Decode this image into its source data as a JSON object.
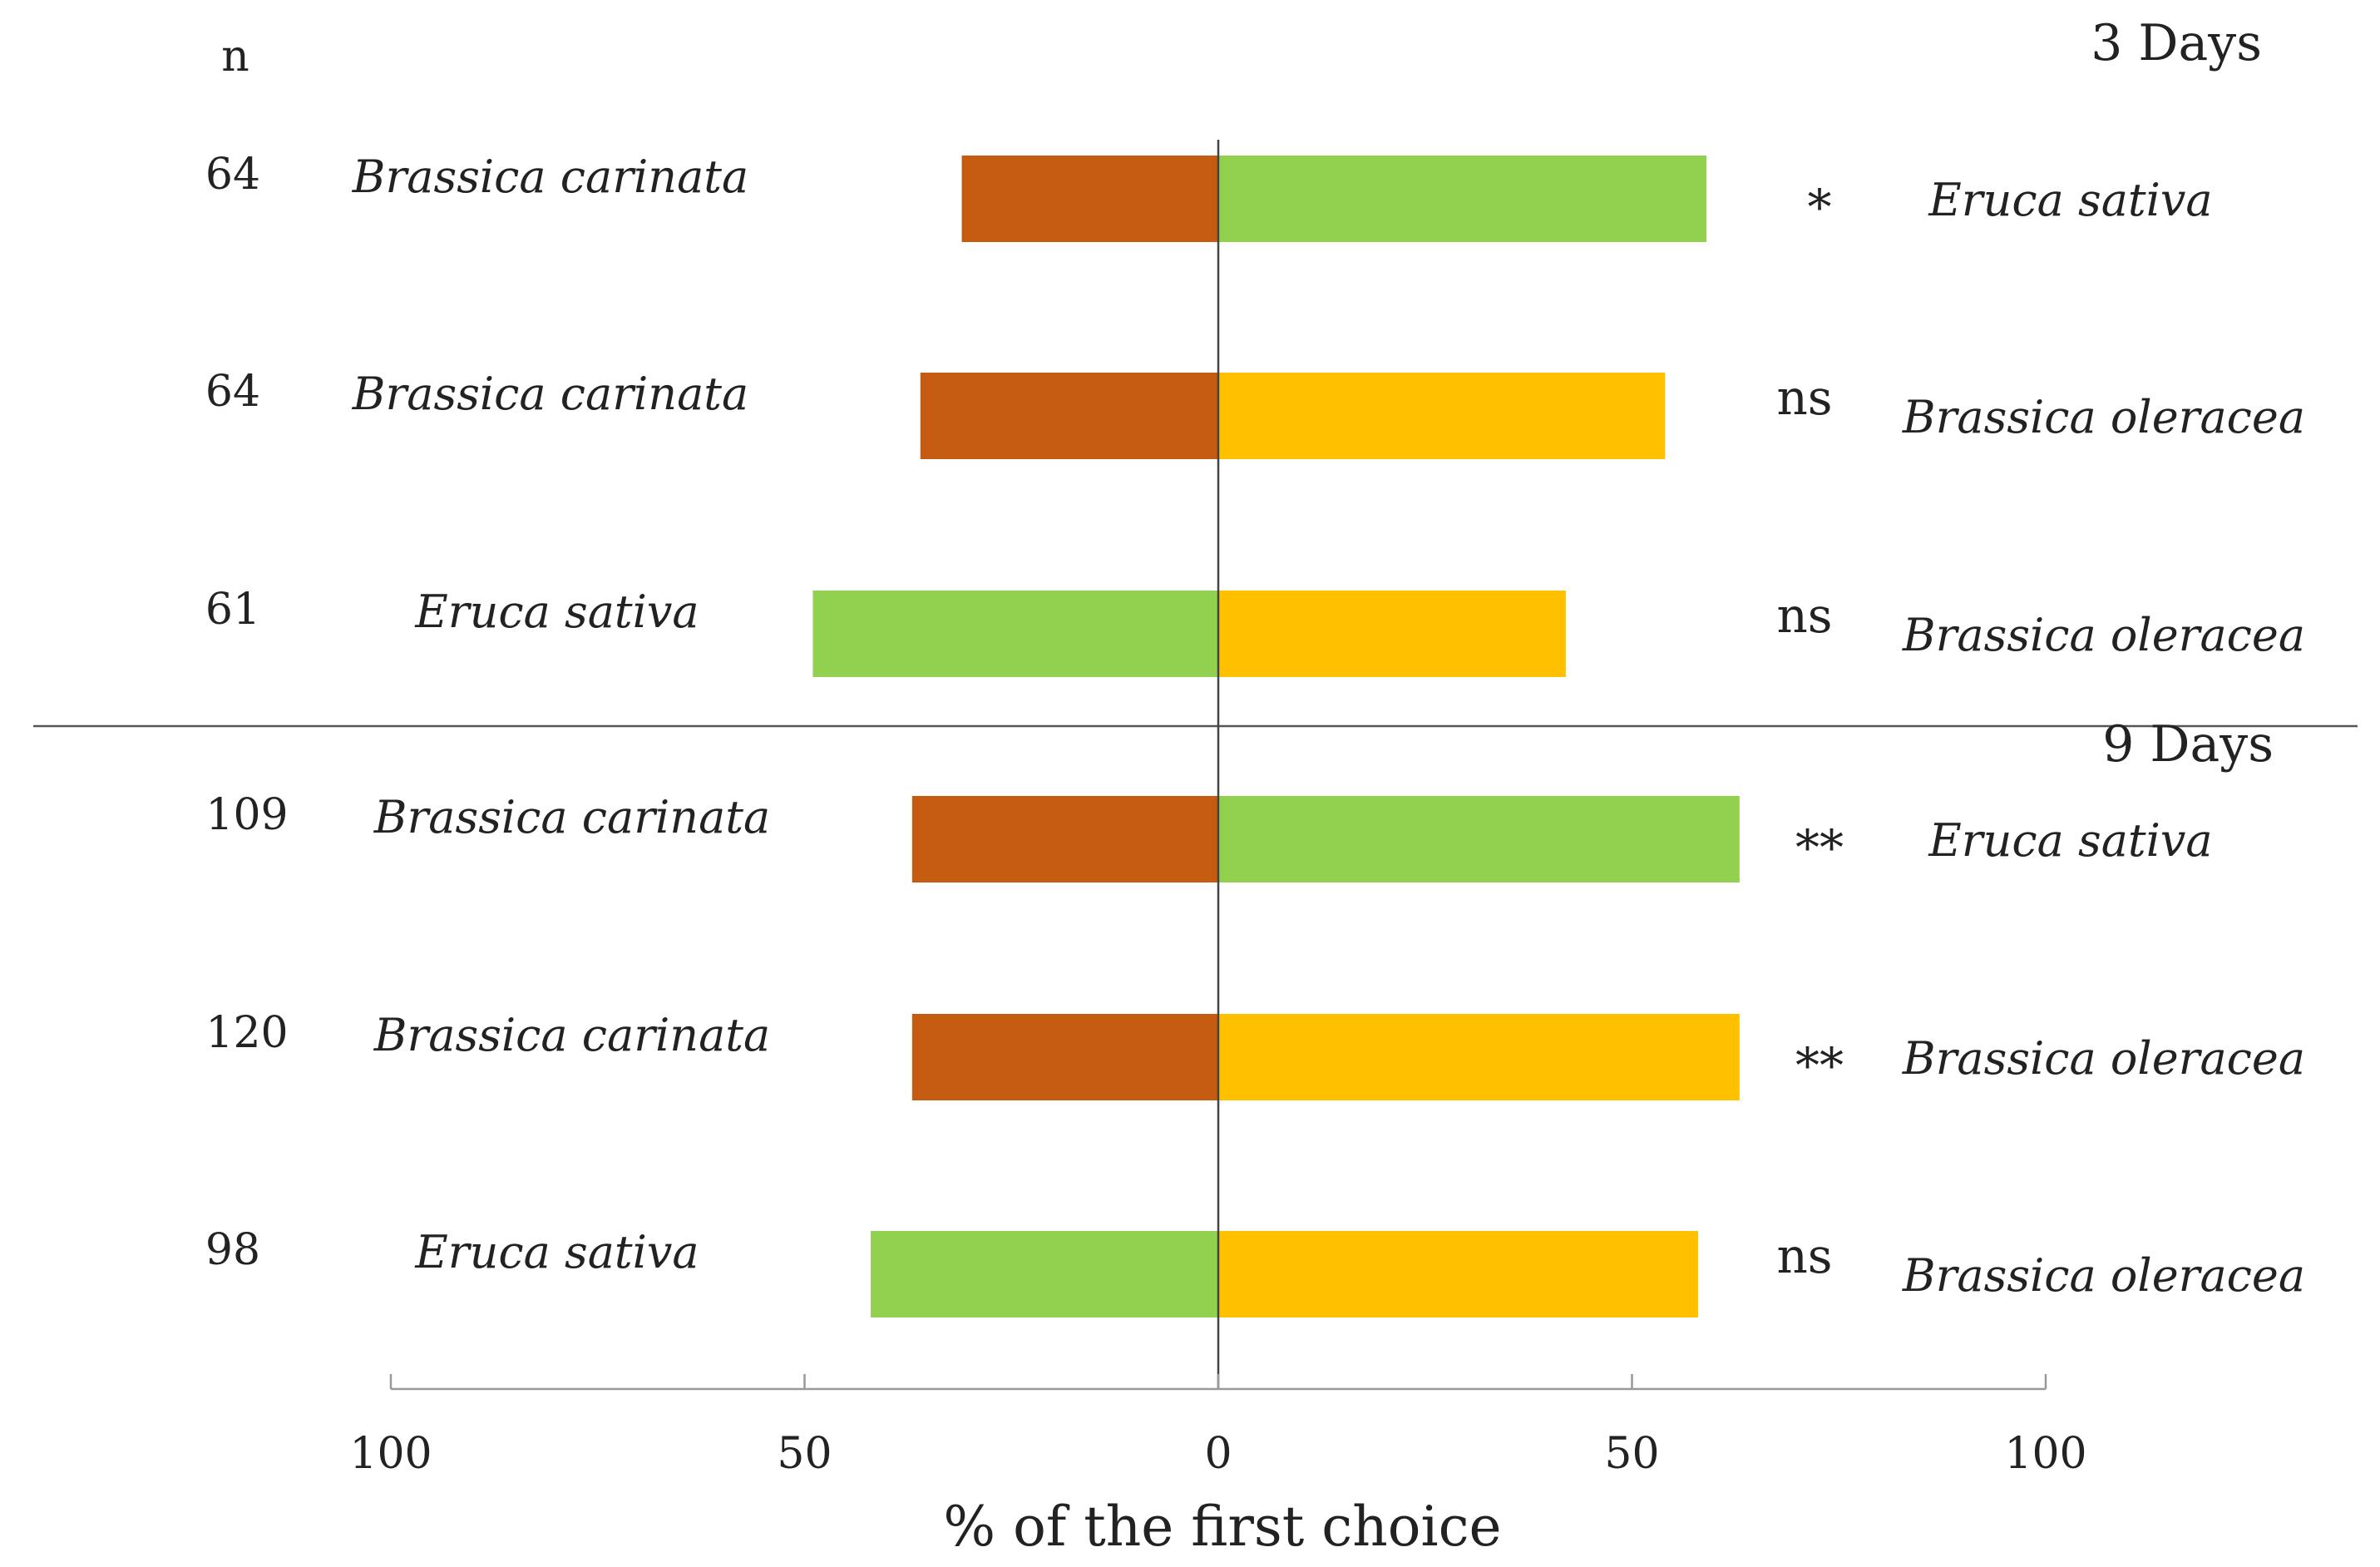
{
  "chart_data": {
    "type": "bar",
    "orientation": "horizontal-diverging",
    "xlabel": "% of the first choice",
    "xlim": [
      -100,
      100
    ],
    "xticks": [
      -100,
      -50,
      0,
      50,
      100
    ],
    "xtick_labels": [
      "100",
      "50",
      "0",
      "50",
      "100"
    ],
    "n_header": "n",
    "colors": {
      "Brassica carinata": "#c55a11",
      "Eruca sativa": "#92d050",
      "Brassica oleracea": "#ffc000"
    },
    "panels": [
      {
        "label": "3 Days",
        "rows": [
          {
            "n": "64",
            "left": "Brassica carinata",
            "right": "Eruca sativa",
            "left_value": 31,
            "right_value": 59,
            "sig": "*"
          },
          {
            "n": "64",
            "left": "Brassica carinata",
            "right": "Brassica oleracea",
            "left_value": 36,
            "right_value": 54,
            "sig": "ns"
          },
          {
            "n": "61",
            "left": "Eruca sativa",
            "right": "Brassica oleracea",
            "left_value": 49,
            "right_value": 42,
            "sig": "ns"
          }
        ]
      },
      {
        "label": "9 Days",
        "rows": [
          {
            "n": "109",
            "left": "Brassica carinata",
            "right": "Eruca sativa",
            "left_value": 37,
            "right_value": 63,
            "sig": "**"
          },
          {
            "n": "120",
            "left": "Brassica carinata",
            "right": "Brassica oleracea",
            "left_value": 37,
            "right_value": 63,
            "sig": "**"
          },
          {
            "n": "98",
            "left": "Eruca sativa",
            "right": "Brassica oleracea",
            "left_value": 42,
            "right_value": 58,
            "sig": "ns"
          }
        ]
      }
    ]
  }
}
